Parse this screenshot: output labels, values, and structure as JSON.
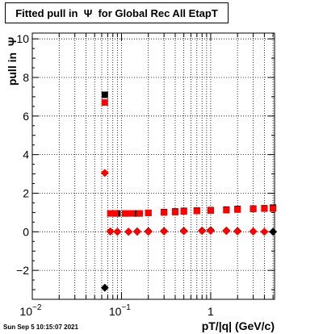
{
  "title": "Fitted pull in  Ψ  for Global Rec All EtapT",
  "datestamp": "Sun Sep  5 10:15:07 2021",
  "chart_data": {
    "type": "scatter",
    "xlabel": "pT/|q| (GeV/c)",
    "ylabel": "pull in  Ψ",
    "xscale": "log",
    "xlim": [
      0.01,
      5.2
    ],
    "ylim": [
      -3.5,
      10.3
    ],
    "grid": true,
    "x_ticks": [
      {
        "label": "10",
        "exp": "−2",
        "value": 0.01
      },
      {
        "label": "10",
        "exp": "−1",
        "value": 0.1
      },
      {
        "label": "1",
        "exp": "",
        "value": 1
      }
    ],
    "y_ticks": [
      {
        "label": "−2",
        "value": -2
      },
      {
        "label": "0",
        "value": 0
      },
      {
        "label": "2",
        "value": 2
      },
      {
        "label": "4",
        "value": 4
      },
      {
        "label": "6",
        "value": 6
      },
      {
        "label": "8",
        "value": 8
      },
      {
        "label": "10",
        "value": 10
      }
    ],
    "series": [
      {
        "marker": "square",
        "color": "#000000",
        "x": [
          0.065,
          0.09,
          0.11,
          0.15,
          0.2,
          0.3,
          0.4,
          0.5,
          0.7,
          1.0,
          1.5,
          2.0,
          3.0,
          4.0,
          5.0
        ],
        "y": [
          7.1,
          0.95,
          0.95,
          0.95,
          0.98,
          1.02,
          1.05,
          1.08,
          1.1,
          1.12,
          1.15,
          1.18,
          1.2,
          1.22,
          1.25
        ]
      },
      {
        "marker": "square",
        "color": "#ff0000",
        "x": [
          0.065,
          0.075,
          0.085,
          0.11,
          0.13,
          0.16,
          0.2,
          0.3,
          0.4,
          0.5,
          0.7,
          1.0,
          1.5,
          2.0,
          3.0,
          4.0,
          5.0
        ],
        "y": [
          6.7,
          0.95,
          0.95,
          0.95,
          0.95,
          0.95,
          0.98,
          1.0,
          1.02,
          1.05,
          1.08,
          1.1,
          1.12,
          1.15,
          1.18,
          1.2,
          1.2
        ]
      },
      {
        "marker": "diamond",
        "color": "#000000",
        "x": [
          0.065,
          0.075,
          0.09,
          0.12,
          0.15,
          0.2,
          0.3,
          0.5,
          0.8,
          1.0,
          1.5,
          2.0,
          3.0,
          5.0
        ],
        "y": [
          -2.9,
          0.02,
          0.0,
          0.0,
          0.02,
          0.03,
          0.04,
          0.05,
          0.06,
          0.08,
          0.06,
          0.04,
          0.02,
          0.0
        ]
      },
      {
        "marker": "diamond",
        "color": "#ff0000",
        "x": [
          0.065,
          0.075,
          0.09,
          0.12,
          0.15,
          0.2,
          0.3,
          0.5,
          0.8,
          1.0,
          1.5,
          2.0,
          3.0,
          4.0
        ],
        "y": [
          3.05,
          0.02,
          0.0,
          0.0,
          0.0,
          0.0,
          0.02,
          0.03,
          0.04,
          0.05,
          0.04,
          0.02,
          0.02,
          0.0
        ]
      }
    ]
  }
}
